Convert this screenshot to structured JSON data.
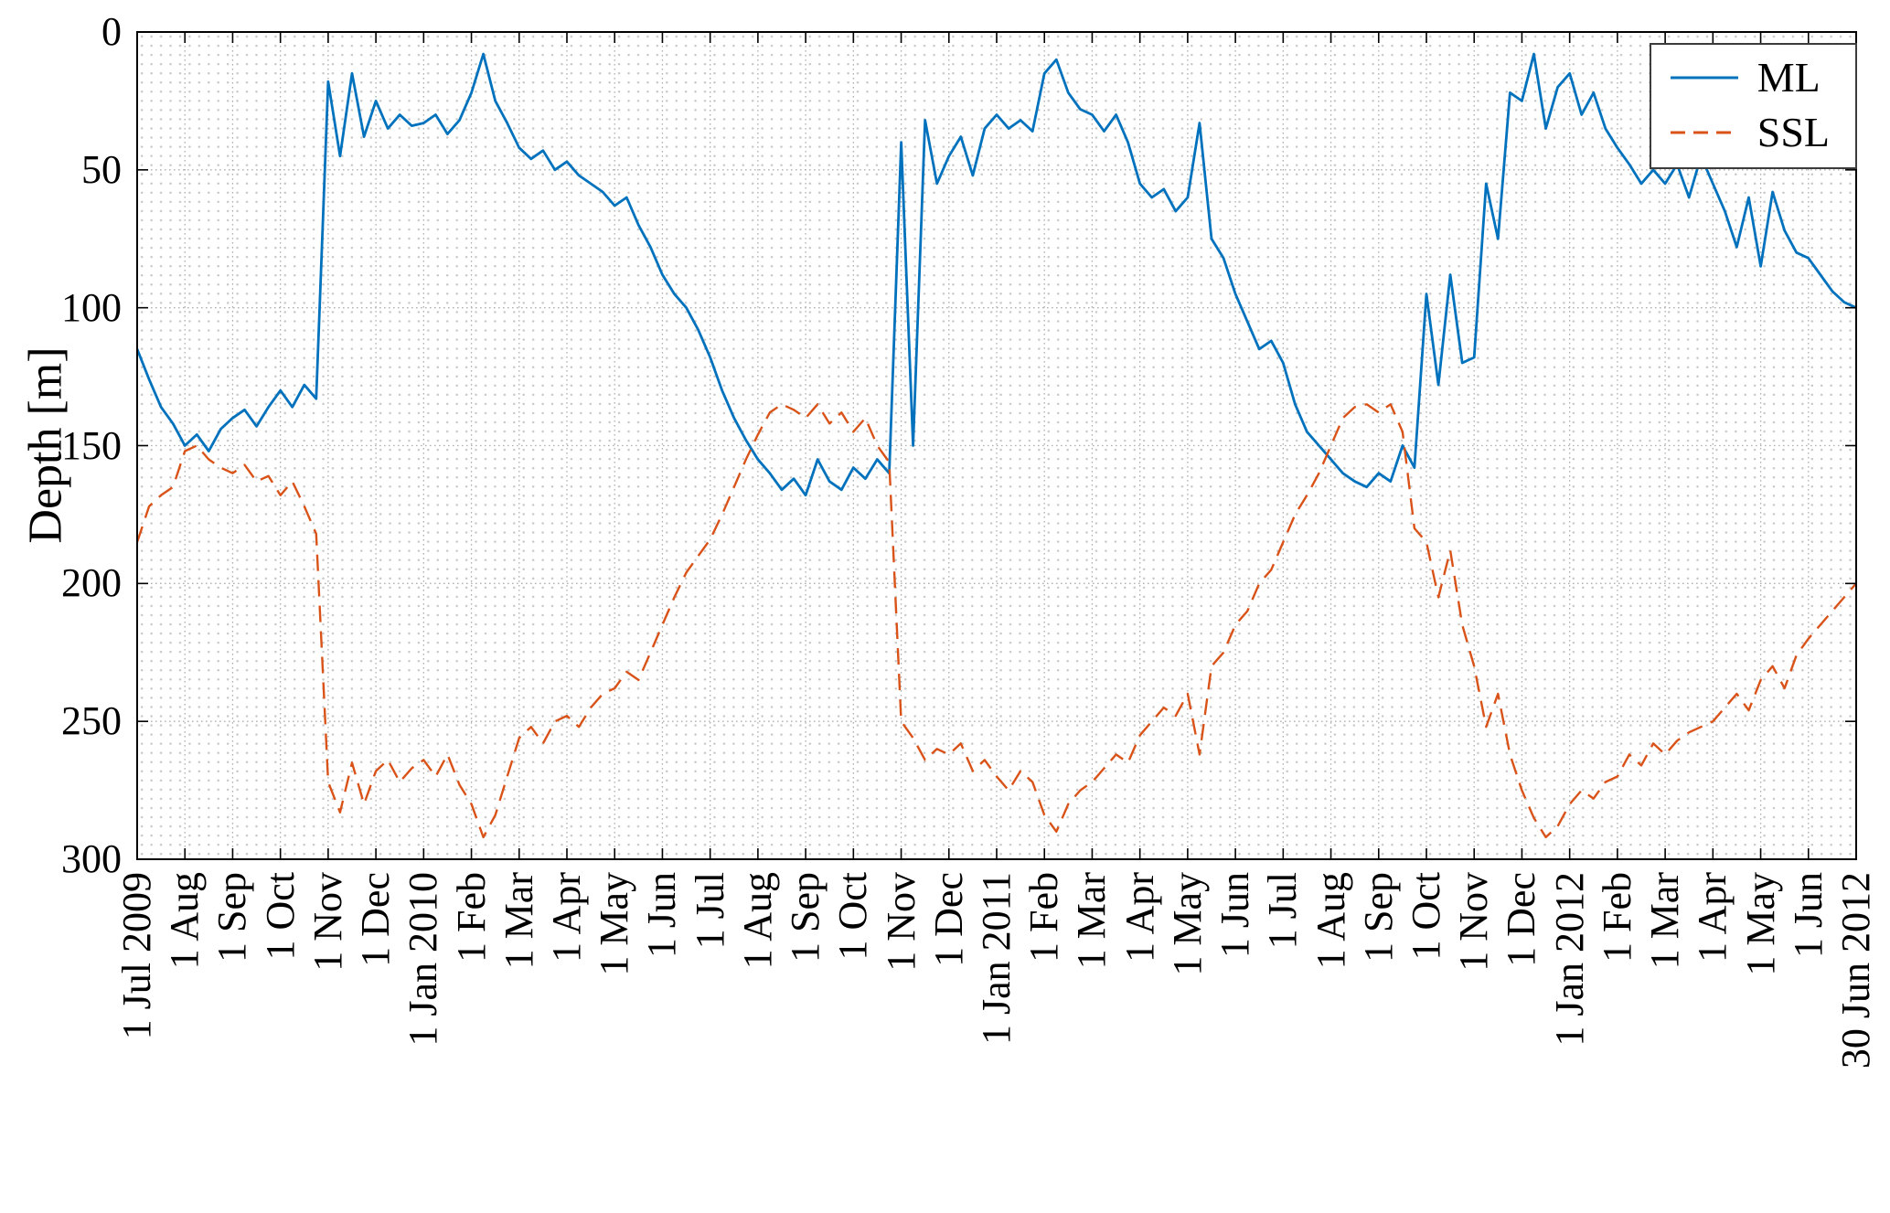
{
  "chart_data": {
    "type": "line",
    "title": "",
    "xlabel": "",
    "ylabel": "Depth [m]",
    "ylim": [
      0,
      300
    ],
    "y_axis_reversed": true,
    "y_ticks": [
      0,
      50,
      100,
      150,
      200,
      250,
      300
    ],
    "xlim_months": [
      0,
      36
    ],
    "x_unit": "months since 1 Jul 2009",
    "x_ticks": [
      "1 Jul 2009",
      "1 Aug",
      "1 Sep",
      "1 Oct",
      "1 Nov",
      "1 Dec",
      "1 Jan 2010",
      "1 Feb",
      "1 Mar",
      "1 Apr",
      "1 May",
      "1 Jun",
      "1 Jul",
      "1 Aug",
      "1 Sep",
      "1 Oct",
      "1 Nov",
      "1 Dec",
      "1 Jan 2011",
      "1 Feb",
      "1 Mar",
      "1 Apr",
      "1 May",
      "1 Jun",
      "1 Jul",
      "1 Aug",
      "1 Sep",
      "1 Oct",
      "1 Nov",
      "1 Dec",
      "1 Jan 2012",
      "1 Feb",
      "1 Mar",
      "1 Apr",
      "1 May",
      "1 Jun",
      "30 Jun 2012"
    ],
    "grid": "major dotted + minor dotted",
    "legend_position": "top-right",
    "sampling": {
      "x0": 0,
      "dx": 0.25
    },
    "series": [
      {
        "name": "ML",
        "color": "#0072BD",
        "style": "solid",
        "values": [
          115,
          126,
          136,
          142,
          150,
          146,
          152,
          144,
          140,
          137,
          143,
          136,
          130,
          136,
          128,
          133,
          18,
          45,
          15,
          38,
          25,
          35,
          30,
          34,
          33,
          30,
          37,
          32,
          22,
          8,
          25,
          33,
          42,
          46,
          43,
          50,
          47,
          52,
          55,
          58,
          63,
          60,
          70,
          78,
          88,
          95,
          100,
          108,
          118,
          130,
          140,
          148,
          155,
          160,
          166,
          162,
          168,
          155,
          163,
          166,
          158,
          162,
          155,
          160,
          40,
          150,
          32,
          55,
          45,
          38,
          52,
          35,
          30,
          35,
          32,
          36,
          15,
          10,
          22,
          28,
          30,
          36,
          30,
          40,
          55,
          60,
          57,
          65,
          60,
          33,
          75,
          82,
          95,
          105,
          115,
          112,
          120,
          135,
          145,
          150,
          155,
          160,
          163,
          165,
          160,
          163,
          150,
          158,
          95,
          128,
          88,
          120,
          118,
          55,
          75,
          22,
          25,
          8,
          35,
          20,
          15,
          30,
          22,
          35,
          42,
          48,
          55,
          50,
          55,
          48,
          60,
          45,
          55,
          65,
          78,
          60,
          85,
          58,
          72,
          80,
          82,
          88,
          94,
          98,
          100
        ]
      },
      {
        "name": "SSL",
        "color": "#D95319",
        "style": "dashed",
        "values": [
          185,
          172,
          168,
          165,
          152,
          150,
          155,
          158,
          160,
          157,
          163,
          161,
          168,
          163,
          172,
          182,
          272,
          283,
          265,
          280,
          268,
          264,
          272,
          267,
          264,
          270,
          262,
          273,
          280,
          292,
          284,
          270,
          256,
          252,
          258,
          250,
          248,
          252,
          245,
          240,
          238,
          232,
          235,
          225,
          215,
          205,
          196,
          190,
          184,
          175,
          165,
          155,
          146,
          138,
          135,
          137,
          140,
          135,
          142,
          138,
          145,
          140,
          150,
          156,
          250,
          256,
          264,
          260,
          262,
          258,
          268,
          264,
          270,
          275,
          268,
          272,
          284,
          290,
          280,
          275,
          272,
          267,
          262,
          265,
          255,
          250,
          245,
          248,
          240,
          262,
          230,
          225,
          215,
          210,
          200,
          195,
          185,
          175,
          168,
          160,
          150,
          140,
          136,
          135,
          138,
          135,
          145,
          180,
          185,
          205,
          188,
          215,
          230,
          252,
          240,
          262,
          275,
          285,
          292,
          288,
          280,
          275,
          278,
          272,
          270,
          262,
          266,
          258,
          262,
          257,
          254,
          252,
          250,
          245,
          240,
          246,
          235,
          230,
          238,
          226,
          220,
          215,
          210,
          205,
          200
        ]
      }
    ]
  }
}
